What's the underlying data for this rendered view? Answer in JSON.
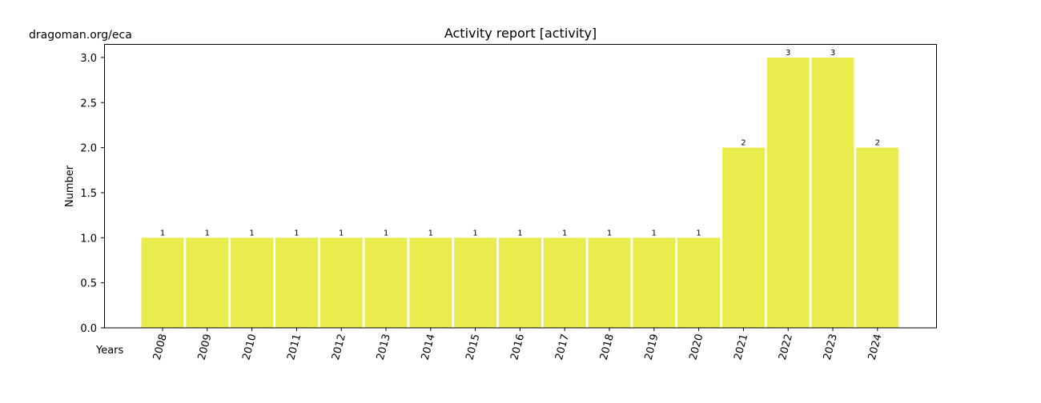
{
  "watermark": "dragoman.org/eca",
  "chart_data": {
    "type": "bar",
    "title": "Activity report [activity]",
    "xlabel": "Years",
    "ylabel": "Number",
    "categories": [
      "2008",
      "2009",
      "2010",
      "2011",
      "2012",
      "2013",
      "2014",
      "2015",
      "2016",
      "2017",
      "2018",
      "2019",
      "2020",
      "2021",
      "2022",
      "2023",
      "2024"
    ],
    "values": [
      1,
      1,
      1,
      1,
      1,
      1,
      1,
      1,
      1,
      1,
      1,
      1,
      1,
      2,
      3,
      3,
      2
    ],
    "data_labels": [
      "1",
      "1",
      "1",
      "1",
      "1",
      "1",
      "1",
      "1",
      "1",
      "1",
      "1",
      "1",
      "1",
      "2",
      "3",
      "3",
      "2"
    ],
    "ylim": [
      0,
      3.15
    ],
    "yticks": [
      "0.0",
      "0.5",
      "1.0",
      "1.5",
      "2.0",
      "2.5",
      "3.0"
    ],
    "grid": false,
    "bar_color": "#e8ed4d"
  }
}
